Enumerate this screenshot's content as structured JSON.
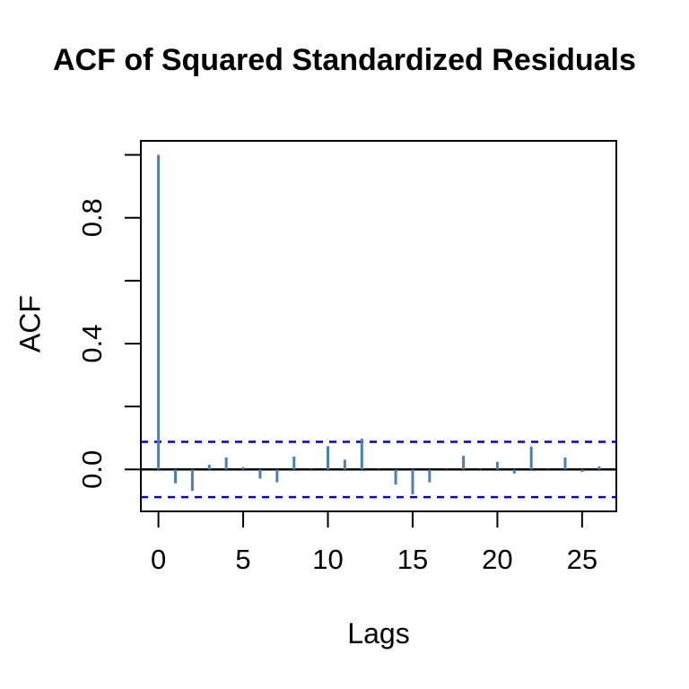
{
  "title": "ACF of Squared Standardized Residuals",
  "colors": {
    "background": "#FFFFFF",
    "spike": "#4682B4",
    "confidence_line": "#0000CC",
    "axis": "#000000",
    "text": "#000000"
  },
  "chart_data": {
    "type": "bar",
    "subtype": "acf-spike-plot",
    "title": "ACF of Squared Standardized Residuals",
    "xlabel": "Lags",
    "ylabel": "ACF",
    "x": [
      0,
      1,
      2,
      3,
      4,
      5,
      6,
      7,
      8,
      9,
      10,
      11,
      12,
      13,
      14,
      15,
      16,
      17,
      18,
      19,
      20,
      21,
      22,
      23,
      24,
      25,
      26
    ],
    "values": [
      1.0,
      -0.044,
      -0.068,
      0.015,
      0.038,
      0.008,
      -0.029,
      -0.041,
      0.041,
      0.002,
      0.074,
      0.031,
      0.098,
      0.002,
      -0.048,
      -0.079,
      -0.041,
      0.002,
      0.043,
      0.002,
      0.024,
      -0.013,
      0.073,
      0.002,
      0.038,
      -0.008,
      0.01
    ],
    "confidence_bounds": {
      "upper": 0.088,
      "lower": -0.088,
      "line_style": "dashed"
    },
    "x_ticks": [
      0,
      5,
      10,
      15,
      20,
      25
    ],
    "x_tick_labels": [
      "0",
      "5",
      "10",
      "15",
      "20",
      "25"
    ],
    "y_ticks": [
      0.0,
      0.2,
      0.4,
      0.6,
      0.8,
      1.0
    ],
    "y_labeled_ticks": [
      0.0,
      0.4,
      0.8
    ],
    "y_tick_labels": [
      "0.0",
      "0.4",
      "0.8"
    ],
    "xlim": [
      -1,
      27
    ],
    "ylim": [
      -0.13,
      1.04
    ],
    "grid": false,
    "legend": false,
    "zero_line": true
  }
}
